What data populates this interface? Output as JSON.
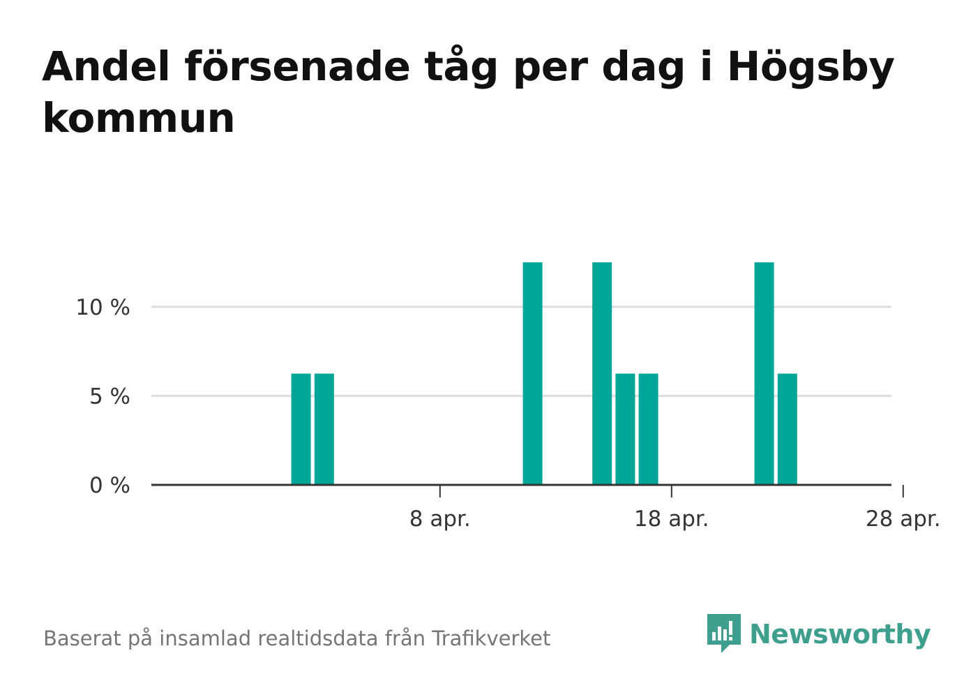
{
  "title": "Andel försenade tåg per dag i Högsby kommun",
  "source": "Baserat på insamlad realtidsdata från Trafikverket",
  "logo_text": "Newsworthy",
  "colors": {
    "bar": "#00a599",
    "grid": "#dddddd",
    "axis": "#333333",
    "logo": "#3f9f8f"
  },
  "chart_data": {
    "type": "bar",
    "x_start": "2020-03-30",
    "x_tick_labels": [
      {
        "date": "2020-04-08",
        "label": "8 apr."
      },
      {
        "date": "2020-04-18",
        "label": "18 apr."
      },
      {
        "date": "2020-04-28",
        "label": "28 apr."
      }
    ],
    "y_ticks": [
      {
        "value": 0,
        "label": "0 %"
      },
      {
        "value": 5,
        "label": "5 %"
      },
      {
        "value": 10,
        "label": "10 %"
      }
    ],
    "ylim": [
      0,
      12.5
    ],
    "grid": true,
    "series": [
      {
        "values": [
          {
            "date": "2020-04-02",
            "value": 6.25
          },
          {
            "date": "2020-04-03",
            "value": 6.25
          },
          {
            "date": "2020-04-12",
            "value": 12.5
          },
          {
            "date": "2020-04-15",
            "value": 12.5
          },
          {
            "date": "2020-04-16",
            "value": 6.25
          },
          {
            "date": "2020-04-17",
            "value": 6.25
          },
          {
            "date": "2020-04-22",
            "value": 12.5
          },
          {
            "date": "2020-04-23",
            "value": 6.25
          }
        ]
      }
    ]
  }
}
